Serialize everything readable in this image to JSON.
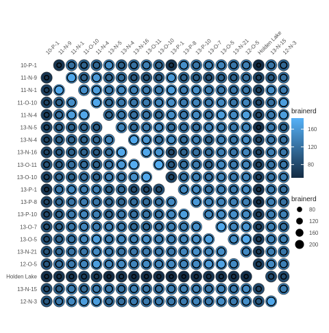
{
  "chart_data": {
    "type": "heatmap",
    "title": "",
    "xlabel": "",
    "ylabel": "",
    "row_labels": [
      "10-P-1",
      "11-N-9",
      "11-N-1",
      "11-O-10",
      "11-N-4",
      "13-N-5",
      "13-N-4",
      "13-N-16",
      "13-O-11",
      "13-O-10",
      "13-P-1",
      "13-P-8",
      "13-P-10",
      "13-O-7",
      "13-O-5",
      "13-N-21",
      "12-O-5",
      "Holden Lake",
      "13-N-15",
      "12-N-3"
    ],
    "col_labels": [
      "10-P-1",
      "11-N-9",
      "11-N-1",
      "11-O-10",
      "11-N-4",
      "13-N-5",
      "13-N-4",
      "13-N-16",
      "13-O-11",
      "13-O-10",
      "13-P-1",
      "13-P-8",
      "13-P-10",
      "13-O-7",
      "13-O-5",
      "13-N-21",
      "12-O-5",
      "Holden Lake",
      "13-N-15",
      "12-N-3"
    ],
    "color_legend": {
      "title": "brainerd",
      "ticks": [
        80,
        120,
        160
      ],
      "range": [
        50,
        185
      ],
      "low_color": "#132b43",
      "high_color": "#56b1f7"
    },
    "size_legend": {
      "title": "brainerd",
      "values": [
        80,
        120,
        160,
        200
      ],
      "range": [
        50,
        230
      ]
    },
    "values": [
      [
        null,
        60,
        120,
        105,
        110,
        150,
        105,
        120,
        135,
        110,
        60,
        150,
        125,
        135,
        140,
        125,
        135,
        50,
        125,
        110
      ],
      [
        60,
        null,
        175,
        105,
        160,
        110,
        115,
        95,
        90,
        100,
        160,
        105,
        100,
        90,
        105,
        105,
        120,
        75,
        95,
        120
      ],
      [
        70,
        175,
        null,
        150,
        165,
        135,
        145,
        135,
        130,
        135,
        165,
        130,
        150,
        135,
        130,
        125,
        125,
        75,
        150,
        130
      ],
      [
        75,
        105,
        150,
        null,
        175,
        115,
        130,
        125,
        130,
        140,
        150,
        130,
        140,
        130,
        145,
        125,
        140,
        80,
        120,
        165
      ],
      [
        70,
        120,
        165,
        175,
        null,
        110,
        130,
        120,
        125,
        115,
        150,
        130,
        145,
        125,
        165,
        145,
        165,
        80,
        130,
        165
      ],
      [
        75,
        105,
        105,
        110,
        100,
        null,
        140,
        115,
        130,
        145,
        120,
        125,
        120,
        140,
        135,
        130,
        140,
        55,
        130,
        110
      ],
      [
        75,
        105,
        110,
        105,
        110,
        140,
        null,
        175,
        155,
        125,
        150,
        115,
        135,
        110,
        140,
        125,
        145,
        80,
        130,
        120
      ],
      [
        75,
        95,
        105,
        105,
        95,
        115,
        175,
        null,
        175,
        155,
        80,
        105,
        120,
        115,
        135,
        125,
        140,
        75,
        135,
        125
      ],
      [
        90,
        100,
        120,
        115,
        105,
        130,
        160,
        180,
        null,
        180,
        95,
        120,
        130,
        110,
        145,
        130,
        140,
        75,
        125,
        125
      ],
      [
        75,
        110,
        105,
        120,
        105,
        135,
        130,
        150,
        175,
        null,
        75,
        125,
        135,
        125,
        140,
        130,
        140,
        75,
        125,
        135
      ],
      [
        60,
        130,
        145,
        130,
        135,
        105,
        115,
        85,
        80,
        85,
        null,
        145,
        145,
        125,
        140,
        130,
        145,
        60,
        135,
        120
      ],
      [
        75,
        110,
        125,
        130,
        125,
        110,
        110,
        115,
        115,
        120,
        145,
        null,
        160,
        140,
        140,
        135,
        135,
        55,
        135,
        120
      ],
      [
        80,
        105,
        130,
        140,
        135,
        110,
        130,
        120,
        125,
        125,
        145,
        165,
        null,
        145,
        150,
        150,
        145,
        70,
        135,
        135
      ],
      [
        85,
        105,
        125,
        140,
        130,
        135,
        130,
        110,
        110,
        120,
        135,
        135,
        150,
        null,
        175,
        140,
        155,
        75,
        135,
        120
      ],
      [
        85,
        110,
        125,
        140,
        165,
        135,
        145,
        135,
        150,
        140,
        140,
        140,
        150,
        170,
        null,
        150,
        175,
        70,
        140,
        135
      ],
      [
        90,
        110,
        125,
        125,
        145,
        130,
        125,
        125,
        130,
        130,
        130,
        140,
        150,
        140,
        150,
        null,
        145,
        65,
        135,
        125
      ],
      [
        95,
        120,
        130,
        140,
        165,
        140,
        145,
        140,
        145,
        140,
        145,
        140,
        145,
        160,
        170,
        145,
        null,
        70,
        145,
        135
      ],
      [
        55,
        60,
        60,
        70,
        65,
        50,
        60,
        55,
        55,
        55,
        50,
        50,
        55,
        60,
        60,
        60,
        55,
        null,
        80,
        80
      ],
      [
        85,
        105,
        135,
        115,
        130,
        130,
        125,
        135,
        125,
        125,
        135,
        135,
        135,
        130,
        140,
        130,
        145,
        80,
        null,
        135
      ],
      [
        95,
        125,
        145,
        165,
        165,
        115,
        120,
        130,
        130,
        130,
        130,
        130,
        140,
        130,
        150,
        130,
        150,
        95,
        175,
        null
      ]
    ]
  }
}
